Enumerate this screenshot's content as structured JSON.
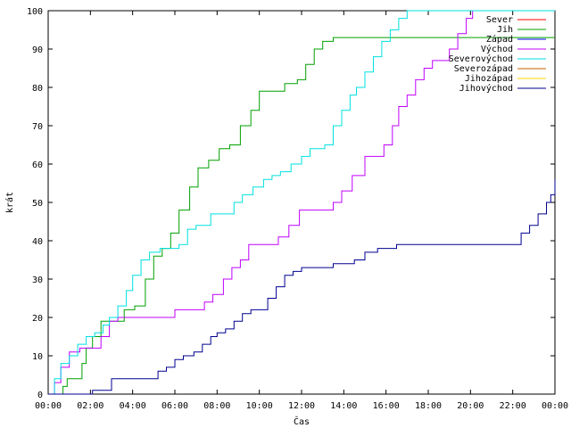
{
  "chart_data": {
    "type": "line",
    "xlabel": "Čas",
    "ylabel": "krát",
    "xlim": [
      0,
      24
    ],
    "ylim": [
      0,
      100
    ],
    "x_ticks": [
      {
        "v": 0,
        "label": "00:00"
      },
      {
        "v": 2,
        "label": "02:00"
      },
      {
        "v": 4,
        "label": "04:00"
      },
      {
        "v": 6,
        "label": "06:00"
      },
      {
        "v": 8,
        "label": "08:00"
      },
      {
        "v": 10,
        "label": "10:00"
      },
      {
        "v": 12,
        "label": "12:00"
      },
      {
        "v": 14,
        "label": "14:00"
      },
      {
        "v": 16,
        "label": "16:00"
      },
      {
        "v": 18,
        "label": "18:00"
      },
      {
        "v": 20,
        "label": "20:00"
      },
      {
        "v": 22,
        "label": "22:00"
      },
      {
        "v": 24,
        "label": "00:00"
      }
    ],
    "y_ticks": [
      0,
      10,
      20,
      30,
      40,
      50,
      60,
      70,
      80,
      90,
      100
    ],
    "grid": false,
    "legend_position": "top-right",
    "series": [
      {
        "name": "Sever",
        "color": "#ff0000",
        "x": [
          20.0,
          24.0
        ],
        "y": [
          100,
          100
        ]
      },
      {
        "name": "Jih",
        "color": "#00a000",
        "x": [
          0.0,
          0.5,
          0.7,
          0.9,
          1.3,
          1.6,
          1.8,
          2.1,
          2.5,
          3.2,
          3.6,
          4.1,
          4.6,
          5.0,
          5.4,
          5.8,
          6.2,
          6.7,
          7.1,
          7.6,
          8.1,
          8.6,
          9.1,
          9.6,
          10.0,
          10.7,
          11.2,
          11.8,
          12.2,
          12.6,
          13.0,
          13.5,
          14.0,
          24.0
        ],
        "y": [
          0,
          0,
          2,
          4,
          4,
          8,
          12,
          15,
          19,
          19,
          22,
          23,
          30,
          36,
          38,
          42,
          48,
          54,
          59,
          61,
          64,
          65,
          70,
          74,
          79,
          79,
          81,
          82,
          86,
          90,
          92,
          93,
          93,
          93
        ]
      },
      {
        "name": "Západ",
        "color": "#0000ff",
        "x": [],
        "y": []
      },
      {
        "name": "Východ",
        "color": "#c000ff",
        "x": [
          0.0,
          0.3,
          0.6,
          1.0,
          1.5,
          2.0,
          2.5,
          2.9,
          3.3,
          4.0,
          5.0,
          6.0,
          7.0,
          7.4,
          7.8,
          8.3,
          8.7,
          9.1,
          9.5,
          9.9,
          10.4,
          10.9,
          11.4,
          11.9,
          12.3,
          12.7,
          13.1,
          13.5,
          13.9,
          14.4,
          15.0,
          15.5,
          15.9,
          16.3,
          16.6,
          17.0,
          17.4,
          17.8,
          18.2,
          18.6,
          19.0,
          19.4,
          19.8,
          20.1,
          24.0
        ],
        "y": [
          0,
          3,
          7,
          11,
          12,
          12,
          15,
          19,
          20,
          20,
          20,
          22,
          22,
          24,
          26,
          30,
          33,
          35,
          39,
          39,
          39,
          41,
          44,
          48,
          48,
          48,
          48,
          50,
          53,
          57,
          62,
          62,
          65,
          70,
          75,
          78,
          82,
          85,
          87,
          87,
          90,
          94,
          98,
          100,
          100
        ]
      },
      {
        "name": "Severovýchod",
        "color": "#00e0e0",
        "x": [
          0.0,
          0.3,
          0.6,
          1.0,
          1.4,
          1.8,
          2.2,
          2.6,
          2.9,
          3.3,
          3.7,
          4.0,
          4.4,
          4.8,
          5.3,
          5.8,
          6.2,
          6.6,
          7.0,
          7.3,
          7.7,
          8.0,
          8.4,
          8.8,
          9.2,
          9.7,
          10.2,
          10.6,
          11.0,
          11.5,
          12.0,
          12.4,
          12.8,
          13.1,
          13.5,
          13.9,
          14.3,
          14.6,
          15.0,
          15.4,
          15.8,
          16.2,
          16.6,
          17.0,
          24.0
        ],
        "y": [
          0,
          4,
          8,
          10,
          13,
          15,
          16,
          18,
          20,
          23,
          27,
          31,
          35,
          37,
          38,
          38,
          39,
          43,
          44,
          44,
          47,
          47,
          47,
          50,
          52,
          54,
          56,
          57,
          58,
          60,
          62,
          64,
          64,
          65,
          70,
          74,
          78,
          80,
          84,
          88,
          92,
          95,
          98,
          100,
          100
        ]
      },
      {
        "name": "Severozápad",
        "color": "#c06000",
        "x": [],
        "y": []
      },
      {
        "name": "Jihozápad",
        "color": "#ffd700",
        "x": [],
        "y": []
      },
      {
        "name": "Jihovýchod",
        "color": "#000090",
        "x": [
          0.0,
          1.5,
          2.1,
          2.5,
          3.0,
          3.5,
          4.0,
          4.5,
          4.9,
          5.2,
          5.6,
          6.0,
          6.4,
          6.9,
          7.3,
          7.7,
          8.0,
          8.4,
          8.8,
          9.2,
          9.6,
          10.0,
          10.4,
          10.8,
          11.2,
          11.6,
          12.0,
          12.3,
          12.6,
          13.0,
          13.5,
          14.0,
          14.5,
          15.0,
          15.6,
          16.0,
          16.5,
          17.0,
          17.5,
          18.0,
          19.0,
          20.0,
          21.0,
          22.2,
          22.4,
          22.8,
          23.2,
          23.6,
          23.8,
          24.0
        ],
        "y": [
          0,
          0,
          1,
          1,
          4,
          4,
          4,
          4,
          4,
          6,
          7,
          9,
          10,
          11,
          13,
          15,
          16,
          17,
          19,
          21,
          22,
          22,
          25,
          28,
          31,
          32,
          33,
          33,
          33,
          33,
          34,
          34,
          35,
          37,
          38,
          38,
          39,
          39,
          39,
          39,
          39,
          39,
          39,
          39,
          42,
          44,
          47,
          50,
          52,
          56
        ]
      }
    ]
  }
}
